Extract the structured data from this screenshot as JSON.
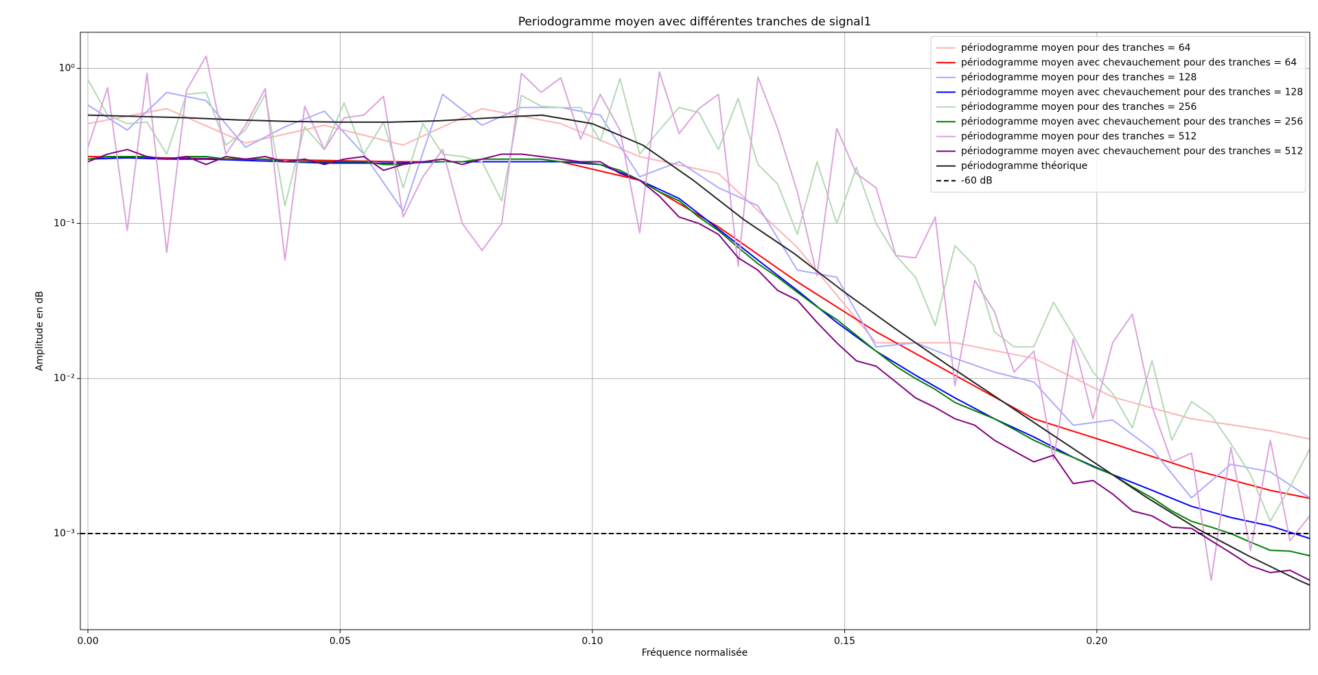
{
  "chart_data": {
    "type": "line",
    "title": "Periodogramme moyen avec différentes tranches de signal1",
    "xlabel": "Fréquence normalisée",
    "ylabel": "Amplitude en dB",
    "xlim": [
      -0.0015,
      0.2422
    ],
    "ylim": [
      0.00024,
      1.71
    ],
    "ylog": true,
    "grid": true,
    "legend": "upper right",
    "xticks": [
      {
        "value": 0,
        "label": "0.00"
      },
      {
        "value": 0.05,
        "label": "0.05"
      },
      {
        "value": 0.1,
        "label": "0.10"
      },
      {
        "value": 0.15,
        "label": "0.15"
      },
      {
        "value": 0.2,
        "label": "0.20"
      }
    ],
    "yticks": [
      {
        "value": 1,
        "label": "10⁰"
      },
      {
        "value": 0.1,
        "label": "10⁻¹"
      },
      {
        "value": 0.01,
        "label": "10⁻²"
      },
      {
        "value": 0.001,
        "label": "10⁻³"
      }
    ],
    "series": [
      {
        "name": "périodogramme moyen pour des tranches = 64",
        "color": "#ffb3b3",
        "step": 64,
        "values": [
          0.44,
          0.55,
          0.33,
          0.43,
          0.32,
          0.55,
          0.44,
          0.27,
          0.21,
          0.07,
          0.017,
          0.017,
          0.0135,
          0.0076,
          0.0055,
          0.0046,
          0.0036
        ]
      },
      {
        "name": "périodogramme moyen avec chevauchement pour des tranches = 64",
        "color": "#ff0000",
        "step": 64,
        "values": [
          0.27,
          0.265,
          0.26,
          0.255,
          0.25,
          0.25,
          0.25,
          0.19,
          0.095,
          0.042,
          0.02,
          0.0105,
          0.0055,
          0.0038,
          0.0026,
          0.0019,
          0.0015
        ]
      },
      {
        "name": "périodogramme moyen pour des tranches = 128",
        "color": "#aaaaff",
        "step": 128,
        "values": [
          0.58,
          0.4,
          0.7,
          0.62,
          0.31,
          0.42,
          0.53,
          0.28,
          0.12,
          0.68,
          0.43,
          0.56,
          0.56,
          0.5,
          0.2,
          0.25,
          0.17,
          0.13,
          0.05,
          0.045,
          0.016,
          0.017,
          0.0135,
          0.011,
          0.0095,
          0.005,
          0.0054,
          0.0035,
          0.0017,
          0.0028,
          0.0025,
          0.0017,
          0.0014
        ]
      },
      {
        "name": "périodogramme moyen avec chevauchement pour des tranches = 128",
        "color": "#0000ff",
        "step": 128,
        "values": [
          0.26,
          0.265,
          0.26,
          0.26,
          0.255,
          0.25,
          0.245,
          0.245,
          0.245,
          0.25,
          0.25,
          0.25,
          0.25,
          0.24,
          0.19,
          0.145,
          0.092,
          0.058,
          0.037,
          0.023,
          0.015,
          0.0105,
          0.0075,
          0.0055,
          0.0042,
          0.0031,
          0.0024,
          0.0019,
          0.0015,
          0.00127,
          0.00112,
          0.00093,
          0.0008
        ]
      },
      {
        "name": "périodogramme moyen pour des tranches = 256",
        "color": "#b3d9b3",
        "step": 256,
        "values": [
          0.85,
          0.5,
          0.44,
          0.45,
          0.28,
          0.68,
          0.7,
          0.32,
          0.4,
          0.68,
          0.13,
          0.42,
          0.3,
          0.6,
          0.28,
          0.45,
          0.17,
          0.44,
          0.28,
          0.27,
          0.25,
          0.14,
          0.67,
          0.57,
          0.56,
          0.56,
          0.34,
          0.86,
          0.28,
          0.4,
          0.56,
          0.52,
          0.3,
          0.64,
          0.24,
          0.18,
          0.085,
          0.25,
          0.1,
          0.23,
          0.1,
          0.062,
          0.045,
          0.022,
          0.072,
          0.053,
          0.02,
          0.016,
          0.016,
          0.031,
          0.019,
          0.011,
          0.008,
          0.0048,
          0.013,
          0.004,
          0.0071,
          0.0058,
          0.0038,
          0.0024,
          0.0012,
          0.002,
          0.0035,
          0.003,
          0.0012
        ]
      },
      {
        "name": "périodogramme moyen avec chevauchement pour des tranches = 256",
        "color": "#008000",
        "step": 256,
        "values": [
          0.26,
          0.27,
          0.27,
          0.27,
          0.26,
          0.27,
          0.27,
          0.26,
          0.26,
          0.26,
          0.25,
          0.25,
          0.25,
          0.25,
          0.25,
          0.24,
          0.24,
          0.25,
          0.25,
          0.25,
          0.26,
          0.26,
          0.26,
          0.26,
          0.25,
          0.25,
          0.24,
          0.22,
          0.19,
          0.16,
          0.14,
          0.11,
          0.09,
          0.07,
          0.055,
          0.045,
          0.036,
          0.029,
          0.024,
          0.019,
          0.015,
          0.012,
          0.01,
          0.0085,
          0.007,
          0.0062,
          0.0055,
          0.0047,
          0.004,
          0.0035,
          0.0031,
          0.0027,
          0.0024,
          0.002,
          0.0017,
          0.0014,
          0.0012,
          0.0011,
          0.001,
          0.00088,
          0.00078,
          0.00077,
          0.00072,
          0.00063,
          0.00055
        ]
      },
      {
        "name": "périodogramme moyen pour des tranches = 512",
        "color": "#dba3db",
        "step": 256,
        "values": [
          0.31,
          0.75,
          0.09,
          0.93,
          0.065,
          0.72,
          1.2,
          0.28,
          0.43,
          0.74,
          0.058,
          0.57,
          0.3,
          0.48,
          0.5,
          0.66,
          0.11,
          0.2,
          0.3,
          0.1,
          0.067,
          0.1,
          0.93,
          0.7,
          0.87,
          0.35,
          0.68,
          0.4,
          0.087,
          0.95,
          0.38,
          0.55,
          0.68,
          0.053,
          0.88,
          0.41,
          0.16,
          0.046,
          0.41,
          0.21,
          0.17,
          0.062,
          0.06,
          0.11,
          0.009,
          0.043,
          0.027,
          0.011,
          0.015,
          0.003,
          0.018,
          0.0055,
          0.017,
          0.026,
          0.0066,
          0.0029,
          0.0033,
          0.0005,
          0.0036,
          0.00078,
          0.004,
          0.0009,
          0.0013,
          0.00035,
          0.0016
        ]
      },
      {
        "name": "périodogramme moyen avec chevauchement pour des tranches = 512",
        "color": "#800080",
        "step": 256,
        "values": [
          0.25,
          0.28,
          0.3,
          0.27,
          0.26,
          0.27,
          0.24,
          0.27,
          0.26,
          0.27,
          0.25,
          0.26,
          0.24,
          0.26,
          0.27,
          0.22,
          0.24,
          0.25,
          0.26,
          0.24,
          0.26,
          0.28,
          0.28,
          0.27,
          0.26,
          0.25,
          0.25,
          0.21,
          0.19,
          0.15,
          0.11,
          0.1,
          0.085,
          0.06,
          0.05,
          0.037,
          0.032,
          0.023,
          0.017,
          0.013,
          0.012,
          0.0095,
          0.0075,
          0.0065,
          0.0055,
          0.005,
          0.004,
          0.0034,
          0.0029,
          0.0032,
          0.0021,
          0.0022,
          0.0018,
          0.0014,
          0.0013,
          0.0011,
          0.00108,
          0.0009,
          0.00075,
          0.00062,
          0.00056,
          0.00058,
          0.0005,
          0.00043,
          0.00044
        ]
      },
      {
        "name": "périodogramme théorique",
        "color": "#222222",
        "step": 100,
        "values": [
          0.5,
          0.49,
          0.48,
          0.465,
          0.455,
          0.45,
          0.45,
          0.46,
          0.48,
          0.5,
          0.44,
          0.32,
          0.19,
          0.106,
          0.064,
          0.036,
          0.021,
          0.0125,
          0.0076,
          0.0046,
          0.0028,
          0.0017,
          0.00107,
          0.00072,
          0.0005,
          0.00036
        ]
      },
      {
        "name": "-60 dB",
        "color": "#000000",
        "linestyle": "dashed",
        "x": [
          -0.0015,
          0.2422
        ],
        "values": [
          0.001,
          0.001
        ]
      }
    ]
  }
}
